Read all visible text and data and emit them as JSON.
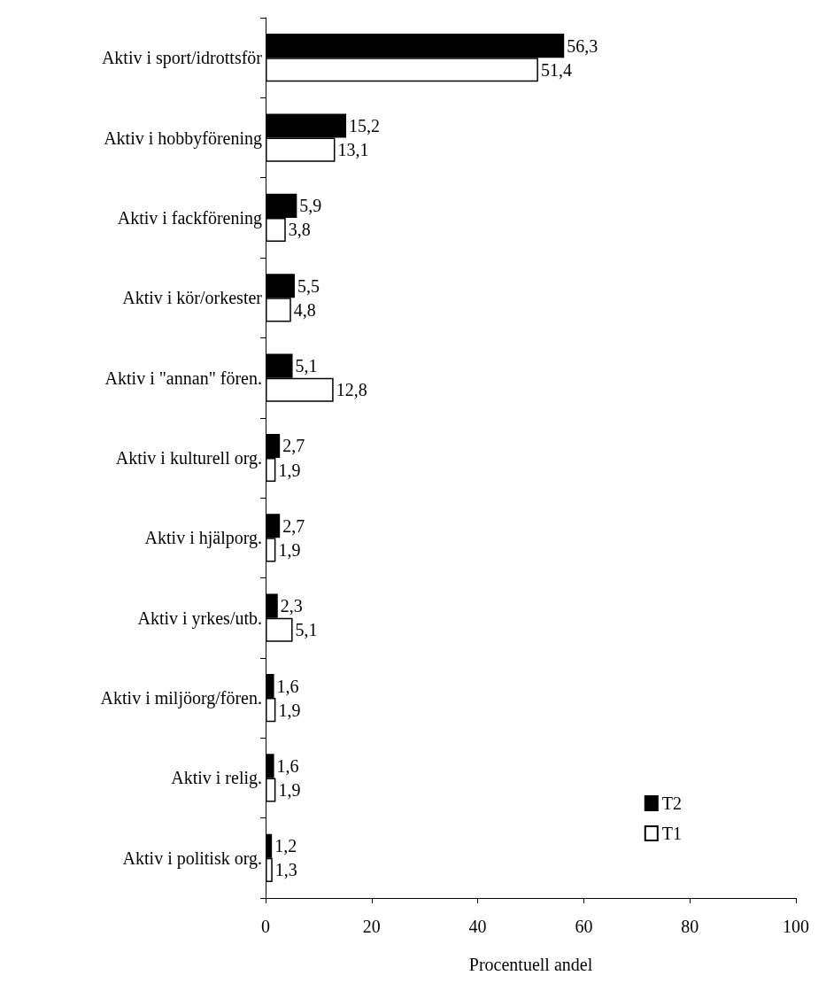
{
  "chart_data": {
    "type": "bar",
    "orientation": "horizontal",
    "xlabel": "Procentuell andel",
    "categories": [
      "Aktiv i sport/idrottsför",
      "Aktiv i hobbyförening",
      "Aktiv i fackförening",
      "Aktiv i kör/orkester",
      "Aktiv i \"annan\" fören.",
      "Aktiv i kulturell org.",
      "Aktiv i hjälporg.",
      "Aktiv i yrkes/utb.",
      "Aktiv i miljöorg/fören.",
      "Aktiv i relig.",
      "Aktiv i politisk org."
    ],
    "series": [
      {
        "name": "T2",
        "color": "#000000",
        "values": [
          56.3,
          15.2,
          5.9,
          5.5,
          5.1,
          2.7,
          2.7,
          2.3,
          1.6,
          1.6,
          1.2
        ],
        "value_labels": [
          "56,3",
          "15,2",
          "5,9",
          "5,5",
          "5,1",
          "2,7",
          "2,7",
          "2,3",
          "1,6",
          "1,6",
          "1,2"
        ]
      },
      {
        "name": "T1",
        "color": "#ffffff",
        "values": [
          51.4,
          13.1,
          3.8,
          4.8,
          12.8,
          1.9,
          1.9,
          5.1,
          1.9,
          1.9,
          1.3
        ],
        "value_labels": [
          "51,4",
          "13,1",
          "3,8",
          "4,8",
          "12,8",
          "1,9",
          "1,9",
          "5,1",
          "1,9",
          "1,9",
          "1,3"
        ]
      }
    ],
    "xlim": [
      0,
      100
    ],
    "xticks": [
      0,
      20,
      40,
      60,
      80,
      100
    ],
    "grid": false,
    "legend": "bottom right"
  }
}
